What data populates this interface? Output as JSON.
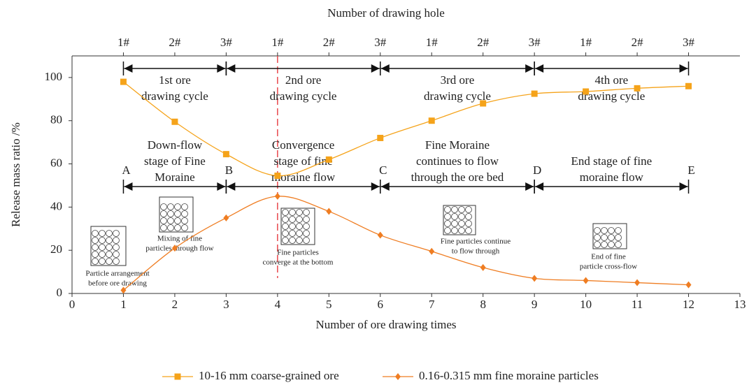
{
  "chart_data": {
    "type": "line",
    "x_label": "Number of ore drawing times",
    "y_label": "Release mass ratio /%",
    "top_axis": {
      "label": "Number of drawing hole",
      "ticks": [
        {
          "value": 1,
          "label": "1#"
        },
        {
          "value": 2,
          "label": "2#"
        },
        {
          "value": 3,
          "label": "3#"
        },
        {
          "value": 4,
          "label": "1#"
        },
        {
          "value": 5,
          "label": "2#"
        },
        {
          "value": 6,
          "label": "3#"
        },
        {
          "value": 7,
          "label": "1#"
        },
        {
          "value": 8,
          "label": "2#"
        },
        {
          "value": 9,
          "label": "3#"
        },
        {
          "value": 10,
          "label": "1#"
        },
        {
          "value": 11,
          "label": "2#"
        },
        {
          "value": 12,
          "label": "3#"
        }
      ]
    },
    "x": [
      1,
      2,
      3,
      4,
      5,
      6,
      7,
      8,
      9,
      10,
      11,
      12
    ],
    "series": [
      {
        "name": "10-16 mm coarse-grained ore",
        "color": "#f5a31a",
        "marker": "square",
        "values": [
          98,
          79.5,
          64.5,
          54.5,
          62,
          72,
          80,
          88,
          92.5,
          93.5,
          95,
          96
        ]
      },
      {
        "name": "0.16-0.315 mm fine moraine particles",
        "color": "#ef7d22",
        "marker": "diamond",
        "values": [
          1.5,
          21,
          35,
          45,
          38,
          27,
          19.5,
          12,
          7,
          6,
          5,
          4
        ]
      }
    ],
    "xlim": [
      0,
      13
    ],
    "xticks": [
      0,
      1,
      2,
      3,
      4,
      5,
      6,
      7,
      8,
      9,
      10,
      11,
      12,
      13
    ],
    "ylim": [
      0,
      110
    ],
    "yticks": [
      0,
      20,
      40,
      60,
      80,
      100
    ],
    "reference_line": {
      "x": 4,
      "color": "#e8474b"
    },
    "cycles": [
      {
        "from": 1,
        "to": 3,
        "label": [
          "1st ore",
          "drawing cycle"
        ]
      },
      {
        "from": 3,
        "to": 6,
        "label": [
          "2nd ore",
          "drawing cycle"
        ]
      },
      {
        "from": 6,
        "to": 9,
        "label": [
          "3rd ore",
          "drawing cycle"
        ]
      },
      {
        "from": 9,
        "to": 12,
        "label": [
          "4th ore",
          "drawing cycle"
        ]
      }
    ],
    "stages": [
      {
        "from": 1,
        "to": 3,
        "label": [
          "Down-flow",
          "stage of Fine",
          "Moraine"
        ]
      },
      {
        "from": 3,
        "to": 6,
        "label": [
          "Convergence",
          "stage of fine",
          "moraine flow"
        ]
      },
      {
        "from": 6,
        "to": 9,
        "label": [
          "Fine Moraine",
          "continues to flow",
          "through the ore bed"
        ]
      },
      {
        "from": 9,
        "to": 12,
        "label": [
          "End stage of fine",
          "moraine flow"
        ]
      }
    ],
    "boundary_labels": [
      {
        "x": 1,
        "label": "A"
      },
      {
        "x": 3,
        "label": "B"
      },
      {
        "x": 6,
        "label": "C"
      },
      {
        "x": 9,
        "label": "D"
      },
      {
        "x": 12,
        "label": "E"
      }
    ],
    "icons": [
      {
        "caption": [
          "Particle arrangement",
          "before ore drawing"
        ]
      },
      {
        "caption": [
          "Mixing of fine",
          "particles through flow"
        ]
      },
      {
        "caption": [
          "Fine particles",
          "converge at the bottom"
        ]
      },
      {
        "caption": [
          "Fine particles continue",
          "to flow through"
        ]
      },
      {
        "caption": [
          "End of fine",
          "particle cross-flow"
        ]
      }
    ]
  }
}
